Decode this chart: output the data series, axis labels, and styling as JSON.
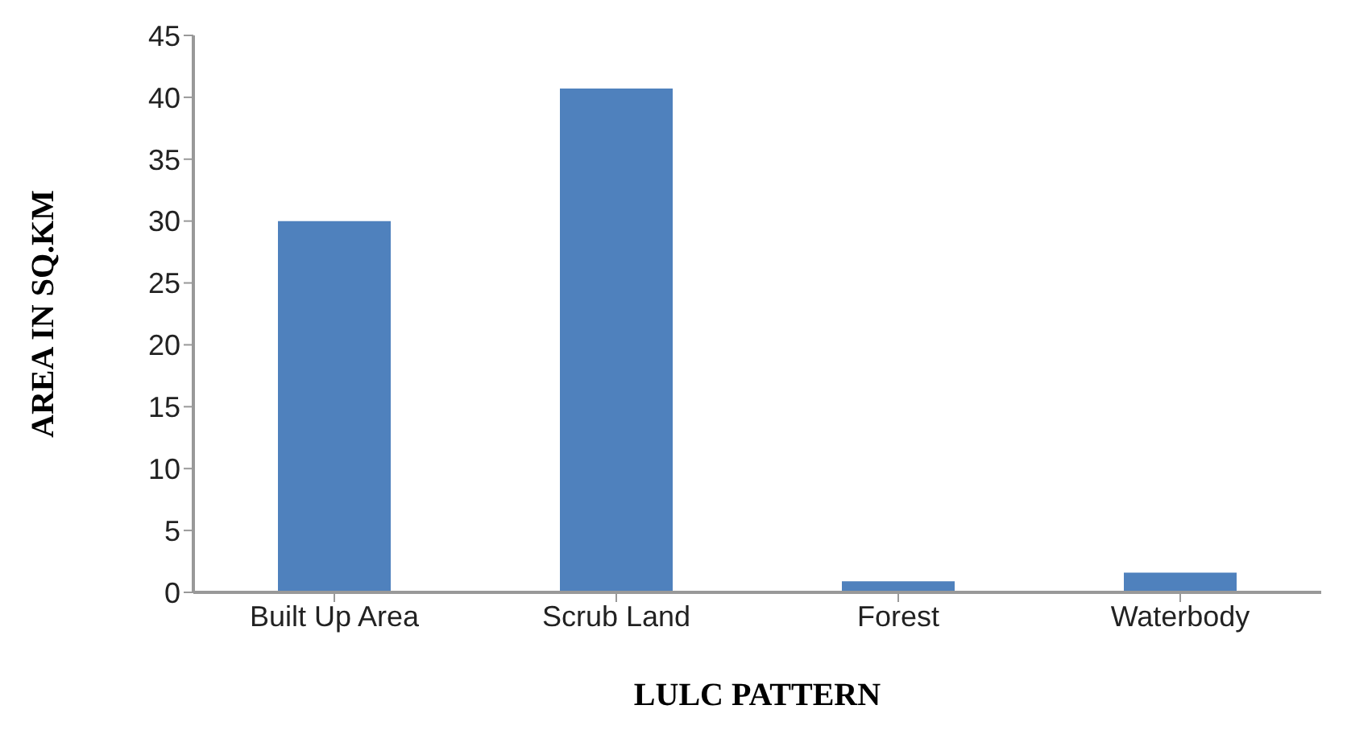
{
  "chart_data": {
    "type": "bar",
    "xlabel": "LULC PATTERN",
    "ylabel": "AREA IN SQ.KM",
    "categories": [
      "Built Up Area",
      "Scrub Land",
      "Forest",
      "Waterbody"
    ],
    "values": [
      30,
      40.7,
      0.9,
      1.6
    ],
    "color": "#4f81bd",
    "ylim": [
      0,
      45
    ],
    "yticks": [
      0,
      5,
      10,
      15,
      20,
      25,
      30,
      35,
      40,
      45
    ],
    "grid": false,
    "legend": false
  }
}
